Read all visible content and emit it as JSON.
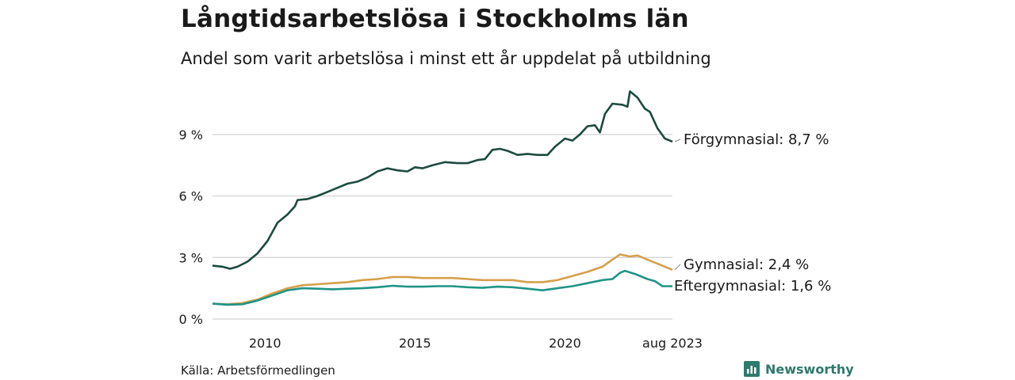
{
  "title": "Långtidsarbetslösa i Stockholms län",
  "subtitle": "Andel som varit arbetslösa i minst ett år uppdelat på utbildning",
  "source": "Källa: Arbetsförmedlingen",
  "brand": "Newsworthy",
  "colors": {
    "forgymnasial": "#1d4a40",
    "gymnasial": "#d4a04a",
    "eftergymnasial": "#1f9486",
    "grid": "#d9d9d9",
    "brand": "#2e7a6c"
  },
  "chart_data": {
    "type": "line",
    "x_start": "2008-04",
    "x_end": "2023-08",
    "xticks": [
      {
        "date": "2010-01",
        "label": "2010"
      },
      {
        "date": "2015-01",
        "label": "2015"
      },
      {
        "date": "2020-01",
        "label": "2020"
      },
      {
        "date": "2023-08",
        "label": "aug 2023"
      }
    ],
    "ylim": [
      0,
      11
    ],
    "yticks": [
      {
        "value": 0,
        "label": "0 %"
      },
      {
        "value": 3,
        "label": "3 %"
      },
      {
        "value": 6,
        "label": "6 %"
      },
      {
        "value": 9,
        "label": "9 %"
      }
    ],
    "grid": true,
    "series": [
      {
        "name": "Förgymnasial",
        "end_label": "Förgymnasial: 8,7 %",
        "color": "#1d4a40",
        "points": [
          [
            "2008-04",
            2.6
          ],
          [
            "2008-08",
            2.55
          ],
          [
            "2008-11",
            2.45
          ],
          [
            "2009-02",
            2.55
          ],
          [
            "2009-06",
            2.8
          ],
          [
            "2009-10",
            3.2
          ],
          [
            "2010-02",
            3.8
          ],
          [
            "2010-06",
            4.7
          ],
          [
            "2010-10",
            5.1
          ],
          [
            "2011-01",
            5.5
          ],
          [
            "2011-02",
            5.8
          ],
          [
            "2011-06",
            5.85
          ],
          [
            "2011-10",
            6.0
          ],
          [
            "2012-02",
            6.2
          ],
          [
            "2012-06",
            6.4
          ],
          [
            "2012-10",
            6.6
          ],
          [
            "2013-02",
            6.7
          ],
          [
            "2013-06",
            6.9
          ],
          [
            "2013-10",
            7.2
          ],
          [
            "2014-02",
            7.35
          ],
          [
            "2014-06",
            7.25
          ],
          [
            "2014-10",
            7.2
          ],
          [
            "2015-01",
            7.4
          ],
          [
            "2015-04",
            7.35
          ],
          [
            "2015-08",
            7.5
          ],
          [
            "2016-01",
            7.65
          ],
          [
            "2016-06",
            7.6
          ],
          [
            "2016-10",
            7.6
          ],
          [
            "2017-02",
            7.75
          ],
          [
            "2017-05",
            7.8
          ],
          [
            "2017-08",
            8.25
          ],
          [
            "2017-11",
            8.3
          ],
          [
            "2018-02",
            8.2
          ],
          [
            "2018-06",
            8.0
          ],
          [
            "2018-10",
            8.05
          ],
          [
            "2019-02",
            8.0
          ],
          [
            "2019-06",
            8.0
          ],
          [
            "2019-09",
            8.4
          ],
          [
            "2020-01",
            8.8
          ],
          [
            "2020-04",
            8.7
          ],
          [
            "2020-07",
            9.0
          ],
          [
            "2020-10",
            9.4
          ],
          [
            "2021-01",
            9.45
          ],
          [
            "2021-03",
            9.1
          ],
          [
            "2021-05",
            10.0
          ],
          [
            "2021-08",
            10.5
          ],
          [
            "2021-12",
            10.45
          ],
          [
            "2022-02",
            10.35
          ],
          [
            "2022-03",
            11.1
          ],
          [
            "2022-06",
            10.8
          ],
          [
            "2022-09",
            10.25
          ],
          [
            "2022-11",
            10.1
          ],
          [
            "2023-02",
            9.3
          ],
          [
            "2023-05",
            8.8
          ],
          [
            "2023-08",
            8.65
          ]
        ]
      },
      {
        "name": "Gymnasial",
        "end_label": "Gymnasial: 2,4 %",
        "color": "#d4a04a",
        "points": [
          [
            "2008-04",
            0.75
          ],
          [
            "2008-10",
            0.72
          ],
          [
            "2009-04",
            0.78
          ],
          [
            "2009-10",
            0.95
          ],
          [
            "2010-04",
            1.25
          ],
          [
            "2010-10",
            1.5
          ],
          [
            "2011-04",
            1.65
          ],
          [
            "2011-10",
            1.7
          ],
          [
            "2012-04",
            1.75
          ],
          [
            "2012-10",
            1.8
          ],
          [
            "2013-04",
            1.9
          ],
          [
            "2013-10",
            1.95
          ],
          [
            "2014-04",
            2.05
          ],
          [
            "2014-10",
            2.05
          ],
          [
            "2015-04",
            2.0
          ],
          [
            "2015-10",
            2.0
          ],
          [
            "2016-04",
            2.0
          ],
          [
            "2016-10",
            1.95
          ],
          [
            "2017-04",
            1.9
          ],
          [
            "2017-10",
            1.9
          ],
          [
            "2018-04",
            1.9
          ],
          [
            "2018-10",
            1.8
          ],
          [
            "2019-04",
            1.8
          ],
          [
            "2019-10",
            1.9
          ],
          [
            "2020-04",
            2.1
          ],
          [
            "2020-10",
            2.3
          ],
          [
            "2021-04",
            2.55
          ],
          [
            "2021-08",
            2.9
          ],
          [
            "2021-11",
            3.15
          ],
          [
            "2022-03",
            3.05
          ],
          [
            "2022-06",
            3.1
          ],
          [
            "2022-10",
            2.9
          ],
          [
            "2023-03",
            2.65
          ],
          [
            "2023-08",
            2.4
          ]
        ]
      },
      {
        "name": "Eftergymnasial",
        "end_label": "Eftergymnasial: 1,6 %",
        "color": "#1f9486",
        "points": [
          [
            "2008-04",
            0.75
          ],
          [
            "2008-10",
            0.7
          ],
          [
            "2009-04",
            0.72
          ],
          [
            "2009-10",
            0.9
          ],
          [
            "2010-04",
            1.15
          ],
          [
            "2010-10",
            1.4
          ],
          [
            "2011-04",
            1.5
          ],
          [
            "2011-10",
            1.48
          ],
          [
            "2012-04",
            1.45
          ],
          [
            "2012-10",
            1.48
          ],
          [
            "2013-04",
            1.5
          ],
          [
            "2013-10",
            1.55
          ],
          [
            "2014-04",
            1.62
          ],
          [
            "2014-10",
            1.58
          ],
          [
            "2015-04",
            1.58
          ],
          [
            "2015-10",
            1.6
          ],
          [
            "2016-04",
            1.6
          ],
          [
            "2016-10",
            1.55
          ],
          [
            "2017-04",
            1.52
          ],
          [
            "2017-10",
            1.58
          ],
          [
            "2018-04",
            1.55
          ],
          [
            "2018-10",
            1.48
          ],
          [
            "2019-04",
            1.4
          ],
          [
            "2019-10",
            1.5
          ],
          [
            "2020-04",
            1.6
          ],
          [
            "2020-10",
            1.75
          ],
          [
            "2021-04",
            1.9
          ],
          [
            "2021-08",
            1.95
          ],
          [
            "2021-11",
            2.25
          ],
          [
            "2022-01",
            2.35
          ],
          [
            "2022-05",
            2.2
          ],
          [
            "2022-10",
            1.95
          ],
          [
            "2023-01",
            1.85
          ],
          [
            "2023-04",
            1.6
          ],
          [
            "2023-08",
            1.6
          ]
        ]
      }
    ]
  }
}
